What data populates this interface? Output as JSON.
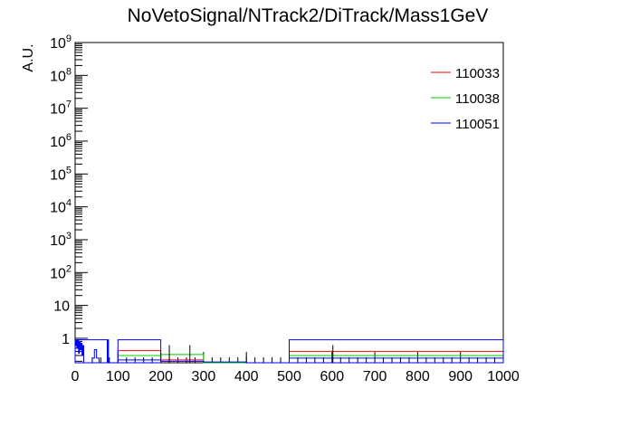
{
  "chart_data": {
    "type": "histogram",
    "title": "NoVetoSignal/NTrack2/DiTrack/Mass1GeV",
    "xlabel": "",
    "ylabel": "A.U.",
    "xlim": [
      0,
      1000
    ],
    "ylim": [
      0.18,
      1000000000
    ],
    "y_scale": "log",
    "grid": false,
    "legend_position": "top-right",
    "x_ticks": [
      0,
      100,
      200,
      300,
      400,
      500,
      600,
      700,
      800,
      900,
      1000
    ],
    "x_tick_labels": [
      "0",
      "100",
      "200",
      "300",
      "400",
      "500",
      "600",
      "700",
      "800",
      "900",
      "1000"
    ],
    "y_ticks": [
      1,
      10,
      100,
      1000,
      10000,
      100000,
      1000000,
      10000000,
      100000000,
      1000000000
    ],
    "y_tick_labels": [
      {
        "base": "1",
        "exp": ""
      },
      {
        "base": "10",
        "exp": ""
      },
      {
        "base": "10",
        "exp": "2"
      },
      {
        "base": "10",
        "exp": "3"
      },
      {
        "base": "10",
        "exp": "4"
      },
      {
        "base": "10",
        "exp": "5"
      },
      {
        "base": "10",
        "exp": "6"
      },
      {
        "base": "10",
        "exp": "7"
      },
      {
        "base": "10",
        "exp": "8"
      },
      {
        "base": "10",
        "exp": "9"
      }
    ],
    "series": [
      {
        "name": "110033",
        "color": "#ff0000",
        "bins": [
          {
            "x0": 0,
            "x1": 100,
            "y": 0.18
          },
          {
            "x0": 100,
            "x1": 200,
            "y": 0.42
          },
          {
            "x0": 200,
            "x1": 300,
            "y": 0.22
          },
          {
            "x0": 300,
            "x1": 500,
            "y": 0.18
          },
          {
            "x0": 500,
            "x1": 1000,
            "y": 0.4
          }
        ],
        "error_bars": [
          {
            "x": 268,
            "y": 0.42,
            "low": 0.2,
            "high": 0.62
          }
        ]
      },
      {
        "name": "110038",
        "color": "#00cc00",
        "bins": [
          {
            "x0": 0,
            "x1": 100,
            "y": 0.18
          },
          {
            "x0": 100,
            "x1": 200,
            "y": 0.3
          },
          {
            "x0": 200,
            "x1": 300,
            "y": 0.32
          },
          {
            "x0": 300,
            "x1": 500,
            "y": 0.18
          },
          {
            "x0": 500,
            "x1": 1000,
            "y": 0.3
          }
        ],
        "error_bars": [
          {
            "x": 220,
            "y": 0.3,
            "low": 0.18,
            "high": 0.62
          }
        ]
      },
      {
        "name": "110051",
        "color": "#0000ff",
        "bins": [
          {
            "x0": 0,
            "x1": 2,
            "y": 0.6
          },
          {
            "x0": 2,
            "x1": 4,
            "y": 0.9
          },
          {
            "x0": 4,
            "x1": 6,
            "y": 0.5
          },
          {
            "x0": 6,
            "x1": 8,
            "y": 0.9
          },
          {
            "x0": 8,
            "x1": 10,
            "y": 0.35
          },
          {
            "x0": 10,
            "x1": 12,
            "y": 0.8
          },
          {
            "x0": 12,
            "x1": 14,
            "y": 0.45
          },
          {
            "x0": 14,
            "x1": 16,
            "y": 0.7
          },
          {
            "x0": 16,
            "x1": 18,
            "y": 0.3
          },
          {
            "x0": 18,
            "x1": 20,
            "y": 0.6
          },
          {
            "x0": 20,
            "x1": 40,
            "y": 0.18
          },
          {
            "x0": 40,
            "x1": 45,
            "y": 0.25
          },
          {
            "x0": 45,
            "x1": 50,
            "y": 0.45
          },
          {
            "x0": 50,
            "x1": 56,
            "y": 0.25
          },
          {
            "x0": 56,
            "x1": 75,
            "y": 0.18
          },
          {
            "x0": 75,
            "x1": 78,
            "y": 0.9
          },
          {
            "x0": 78,
            "x1": 100,
            "y": 0.18
          },
          {
            "x0": 100,
            "x1": 200,
            "y": 0.22
          },
          {
            "x0": 200,
            "x1": 300,
            "y": 0.2
          },
          {
            "x0": 300,
            "x1": 400,
            "y": 0.19
          },
          {
            "x0": 400,
            "x1": 500,
            "y": 0.18
          },
          {
            "x0": 500,
            "x1": 1000,
            "y": 0.25
          }
        ],
        "outline_boxes": [
          {
            "x0": 0,
            "x1": 76,
            "y": 0.9
          },
          {
            "x0": 100,
            "x1": 200,
            "y": 0.9
          },
          {
            "x0": 500,
            "x1": 1000,
            "y": 0.9
          }
        ],
        "error_bars": [
          {
            "x": 400,
            "y": 0.18,
            "low": 0.18,
            "high": 0.28
          }
        ]
      }
    ],
    "black_markers": [
      {
        "x": 268,
        "low": 0.18,
        "high": 0.62
      },
      {
        "x": 220,
        "low": 0.18,
        "high": 0.62
      },
      {
        "x": 400,
        "low": 0.18,
        "high": 0.28
      },
      {
        "x": 602,
        "low": 0.18,
        "high": 0.62
      }
    ]
  }
}
